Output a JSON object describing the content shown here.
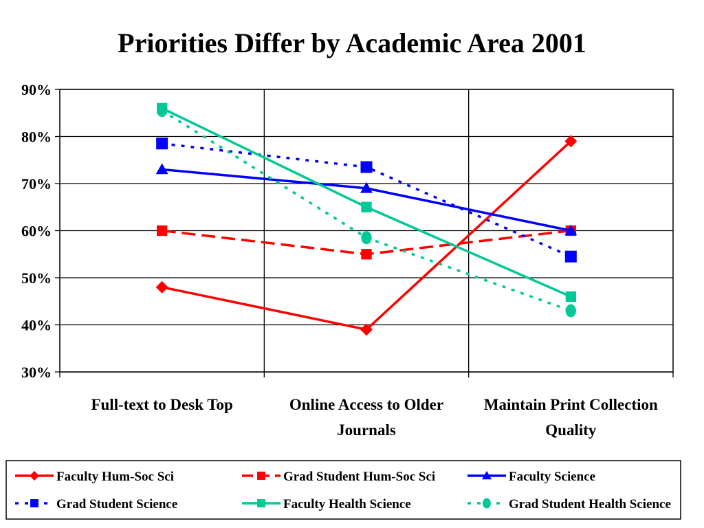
{
  "chart_data": {
    "type": "line",
    "title": "Priorities Differ by Academic Area 2001",
    "xlabel": "",
    "ylabel": "",
    "categories": [
      "Full-text to Desk Top",
      "Online Access to Older Journals",
      "Maintain Print Collection Quality"
    ],
    "category_lines": [
      [
        "Full-text to Desk Top"
      ],
      [
        "Online Access to Older",
        "Journals"
      ],
      [
        "Maintain Print Collection",
        "Quality"
      ]
    ],
    "ylim": [
      30,
      90
    ],
    "yticks": [
      30,
      40,
      50,
      60,
      70,
      80,
      90
    ],
    "ytick_labels": [
      "30%",
      "40%",
      "50%",
      "60%",
      "70%",
      "80%",
      "90%"
    ],
    "grid": true,
    "legend_position": "bottom",
    "series": [
      {
        "name": "Faculty Hum-Soc Sci",
        "values": [
          48,
          39,
          79
        ],
        "color": "#ff0000",
        "dash": "solid",
        "marker": "diamond"
      },
      {
        "name": "Grad Student Hum-Soc Sci",
        "values": [
          60,
          55,
          60
        ],
        "color": "#ff0000",
        "dash": "dashed",
        "marker": "square"
      },
      {
        "name": "Faculty Science",
        "values": [
          73,
          69,
          60
        ],
        "color": "#0000ff",
        "dash": "solid",
        "marker": "triangle"
      },
      {
        "name": "Grad Student Science",
        "values": [
          78.5,
          73.5,
          54.5
        ],
        "color": "#0000ff",
        "dash": "dotted",
        "marker": "square"
      },
      {
        "name": "Faculty Health Science",
        "values": [
          86,
          65,
          46
        ],
        "color": "#00c896",
        "dash": "solid",
        "marker": "square"
      },
      {
        "name": "Grad Student Health Science",
        "values": [
          85.5,
          58.5,
          43
        ],
        "color": "#00c896",
        "dash": "dotted",
        "marker": "circle"
      }
    ]
  }
}
